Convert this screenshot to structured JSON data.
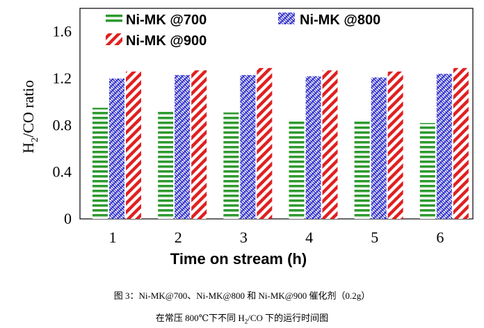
{
  "chart_data": {
    "type": "bar",
    "categories": [
      "1",
      "2",
      "3",
      "4",
      "5",
      "6"
    ],
    "series": [
      {
        "name": "Ni-MK @700",
        "values": [
          0.95,
          0.92,
          0.91,
          0.85,
          0.85,
          0.82
        ],
        "color": "#2e9a2e",
        "pattern": "horizontal-lines"
      },
      {
        "name": "Ni-MK @800",
        "values": [
          1.2,
          1.23,
          1.23,
          1.22,
          1.21,
          1.24
        ],
        "color": "#3333cc",
        "pattern": "weave"
      },
      {
        "name": "Ni-MK @900",
        "values": [
          1.26,
          1.27,
          1.29,
          1.27,
          1.26,
          1.29
        ],
        "color": "#e02020",
        "pattern": "diagonal-stripes"
      }
    ],
    "yticks": [
      "0",
      "0.4",
      "0.8",
      "1.2",
      "1.6"
    ],
    "ylim": [
      0,
      1.8
    ],
    "xlabel": "Time on stream (h)",
    "ylabel_parts": [
      "H",
      "2",
      "/CO ratio"
    ]
  },
  "caption": {
    "line1": "图 3：Ni-MK@700、Ni-MK@800 和 Ni-MK@900 催化剂（0.2g）",
    "line2_a": "在常压 800℃下不同 H",
    "line2_sub": "2",
    "line2_b": "/CO 下的运行时间图"
  }
}
